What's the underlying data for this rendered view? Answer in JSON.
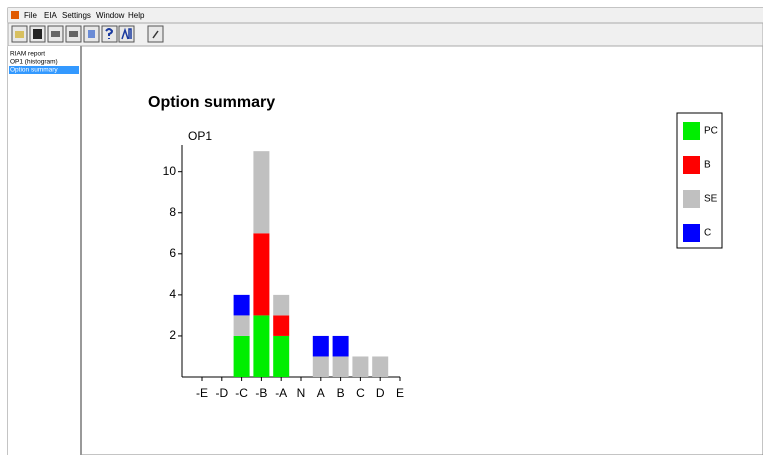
{
  "menu": [
    "File",
    "EIA",
    "Settings",
    "Window",
    "Help"
  ],
  "sidebar": {
    "items": [
      "RIAM report",
      "OP1 (histogram)",
      "Option summary"
    ],
    "selected": 2
  },
  "chart_data": {
    "type": "bar",
    "stacked": true,
    "title": "Option summary",
    "y_label": "OP1",
    "categories": [
      "-E",
      "-D",
      "-C",
      "-B",
      "-A",
      "N",
      "A",
      "B",
      "C",
      "D",
      "E"
    ],
    "series": [
      {
        "name": "PC",
        "color": "#00ee00",
        "values": [
          0,
          0,
          2,
          3,
          2,
          0,
          0,
          0,
          0,
          0,
          0
        ]
      },
      {
        "name": "B",
        "color": "#ff0000",
        "values": [
          0,
          0,
          0,
          4,
          1,
          0,
          0,
          0,
          0,
          0,
          0
        ]
      },
      {
        "name": "SE",
        "color": "#c0c0c0",
        "values": [
          0,
          0,
          1,
          4,
          1,
          0,
          1,
          1,
          1,
          1,
          0
        ]
      },
      {
        "name": "C",
        "color": "#0000ff",
        "values": [
          0,
          0,
          1,
          0,
          0,
          0,
          1,
          1,
          0,
          0,
          0
        ]
      }
    ],
    "ylim": [
      0,
      11.3
    ],
    "yticks": [
      2,
      4,
      6,
      8,
      10
    ]
  }
}
